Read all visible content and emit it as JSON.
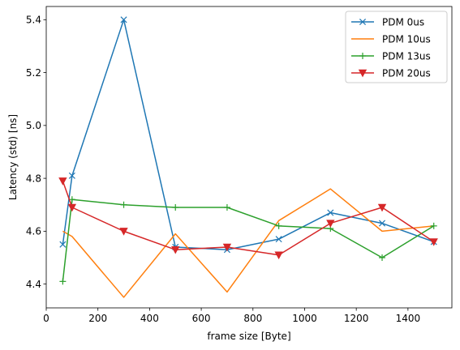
{
  "chart_data": {
    "type": "line",
    "xlabel": "frame size [Byte]",
    "ylabel": "Latency (std) [ns]",
    "xlim": [
      0,
      1570
    ],
    "ylim": [
      4.31,
      5.45
    ],
    "xticks": [
      0,
      200,
      400,
      600,
      800,
      1000,
      1200,
      1400
    ],
    "yticks": [
      4.4,
      4.6,
      4.8,
      5.0,
      5.2,
      5.4
    ],
    "grid": false,
    "legend_position": "top-right",
    "series": [
      {
        "name": "PDM 0us",
        "color": "#1f77b4",
        "marker": "x",
        "x": [
          64,
          100,
          300,
          500,
          700,
          900,
          1100,
          1300,
          1500
        ],
        "y": [
          4.55,
          4.81,
          5.4,
          4.54,
          4.53,
          4.57,
          4.67,
          4.63,
          4.56
        ]
      },
      {
        "name": "PDM 10us",
        "color": "#ff7f0e",
        "marker": "none",
        "x": [
          64,
          100,
          300,
          500,
          700,
          900,
          1100,
          1300,
          1500
        ],
        "y": [
          4.6,
          4.58,
          4.35,
          4.59,
          4.37,
          4.64,
          4.76,
          4.6,
          4.62
        ]
      },
      {
        "name": "PDM 13us",
        "color": "#2ca02c",
        "marker": "+",
        "x": [
          64,
          100,
          300,
          500,
          700,
          900,
          1100,
          1300,
          1500
        ],
        "y": [
          4.41,
          4.72,
          4.7,
          4.69,
          4.69,
          4.62,
          4.61,
          4.5,
          4.62
        ]
      },
      {
        "name": "PDM 20us",
        "color": "#d62728",
        "marker": "v",
        "x": [
          64,
          100,
          300,
          500,
          700,
          900,
          1100,
          1300,
          1500
        ],
        "y": [
          4.79,
          4.69,
          4.6,
          4.53,
          4.54,
          4.51,
          4.63,
          4.69,
          4.56
        ]
      }
    ]
  }
}
